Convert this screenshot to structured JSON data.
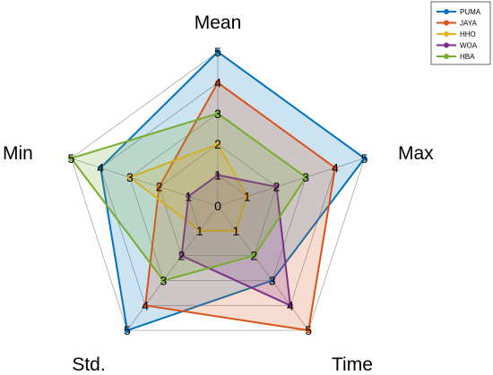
{
  "chart_data": {
    "type": "radar",
    "axes": [
      "Mean",
      "Max",
      "Time",
      "Std.",
      "Min"
    ],
    "rmax": 5,
    "center_label": "0",
    "grid": true,
    "legend_position": "top-right",
    "series": [
      {
        "name": "PUMA",
        "color": "#0072BD",
        "values": [
          5,
          5,
          3,
          5,
          4
        ]
      },
      {
        "name": "JAYA",
        "color": "#D95319",
        "values": [
          4,
          4,
          5,
          4,
          2
        ]
      },
      {
        "name": "HHO",
        "color": "#EDB120",
        "values": [
          2,
          1,
          1,
          1,
          3
        ]
      },
      {
        "name": "WOA",
        "color": "#7E2F8E",
        "values": [
          1,
          2,
          4,
          2,
          1
        ]
      },
      {
        "name": "HBA",
        "color": "#77AC30",
        "values": [
          3,
          3,
          2,
          3,
          5
        ]
      }
    ]
  }
}
